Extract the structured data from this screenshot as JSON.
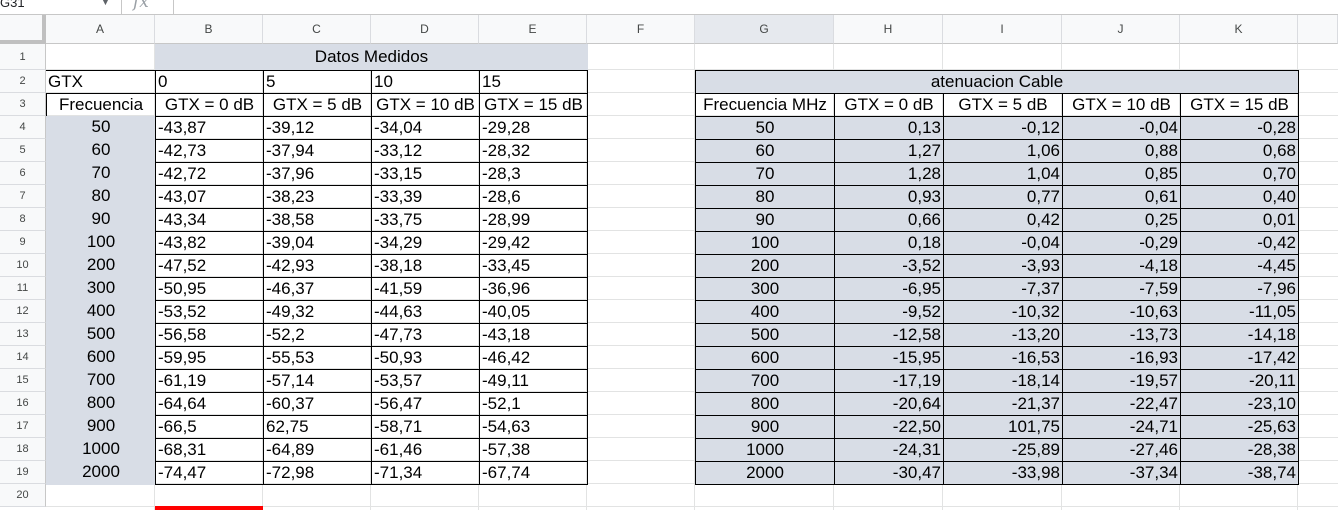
{
  "namebox": "G31",
  "fx_symbol": "fx",
  "columns": [
    "A",
    "B",
    "C",
    "D",
    "E",
    "F",
    "G",
    "H",
    "I",
    "J",
    "K"
  ],
  "rows": [
    "1",
    "2",
    "3",
    "4",
    "5",
    "6",
    "7",
    "8",
    "9",
    "10",
    "11",
    "12",
    "13",
    "14",
    "15",
    "16",
    "17",
    "18",
    "19",
    "20"
  ],
  "left_table": {
    "title": "Datos Medidos",
    "gtx_label": "GTX",
    "gtx_values": [
      "0",
      "5",
      "10",
      "15"
    ],
    "freq_header": "Frecuencia",
    "headers": [
      "GTX = 0 dB",
      "GTX = 5 dB",
      "GTX = 10 dB",
      "GTX = 15 dB"
    ],
    "rows": [
      [
        "50",
        "-43,87",
        "-39,12",
        "-34,04",
        "-29,28"
      ],
      [
        "60",
        "-42,73",
        "-37,94",
        "-33,12",
        "-28,32"
      ],
      [
        "70",
        "-42,72",
        "-37,96",
        "-33,15",
        "-28,3"
      ],
      [
        "80",
        "-43,07",
        "-38,23",
        "-33,39",
        "-28,6"
      ],
      [
        "90",
        "-43,34",
        "-38,58",
        "-33,75",
        "-28,99"
      ],
      [
        "100",
        "-43,82",
        "-39,04",
        "-34,29",
        "-29,42"
      ],
      [
        "200",
        "-47,52",
        "-42,93",
        "-38,18",
        "-33,45"
      ],
      [
        "300",
        "-50,95",
        "-46,37",
        "-41,59",
        "-36,96"
      ],
      [
        "400",
        "-53,52",
        "-49,32",
        "-44,63",
        "-40,05"
      ],
      [
        "500",
        "-56,58",
        "-52,2",
        "-47,73",
        "-43,18"
      ],
      [
        "600",
        "-59,95",
        "-55,53",
        "-50,93",
        "-46,42"
      ],
      [
        "700",
        "-61,19",
        "-57,14",
        "-53,57",
        "-49,11"
      ],
      [
        "800",
        "-64,64",
        "-60,37",
        "-56,47",
        "-52,1"
      ],
      [
        "900",
        "-66,5",
        "62,75",
        "-58,71",
        "-54,63"
      ],
      [
        "1000",
        "-68,31",
        "-64,89",
        "-61,46",
        "-57,38"
      ],
      [
        "2000",
        "-74,47",
        "-72,98",
        "-71,34",
        "-67,74"
      ]
    ]
  },
  "right_table": {
    "title": "atenuacion Cable",
    "freq_header": "Frecuencia MHz",
    "headers": [
      "GTX = 0 dB",
      "GTX = 5 dB",
      "GTX = 10 dB",
      "GTX = 15 dB"
    ],
    "rows": [
      [
        "50",
        "0,13",
        "-0,12",
        "-0,04",
        "-0,28"
      ],
      [
        "60",
        "1,27",
        "1,06",
        "0,88",
        "0,68"
      ],
      [
        "70",
        "1,28",
        "1,04",
        "0,85",
        "0,70"
      ],
      [
        "80",
        "0,93",
        "0,77",
        "0,61",
        "0,40"
      ],
      [
        "90",
        "0,66",
        "0,42",
        "0,25",
        "0,01"
      ],
      [
        "100",
        "0,18",
        "-0,04",
        "-0,29",
        "-0,42"
      ],
      [
        "200",
        "-3,52",
        "-3,93",
        "-4,18",
        "-4,45"
      ],
      [
        "300",
        "-6,95",
        "-7,37",
        "-7,59",
        "-7,96"
      ],
      [
        "400",
        "-9,52",
        "-10,32",
        "-10,63",
        "-11,05"
      ],
      [
        "500",
        "-12,58",
        "-13,20",
        "-13,73",
        "-14,18"
      ],
      [
        "600",
        "-15,95",
        "-16,53",
        "-16,93",
        "-17,42"
      ],
      [
        "700",
        "-17,19",
        "-18,14",
        "-19,57",
        "-20,11"
      ],
      [
        "800",
        "-20,64",
        "-21,37",
        "-22,47",
        "-23,10"
      ],
      [
        "900",
        "-22,50",
        "101,75",
        "-24,71",
        "-25,63"
      ],
      [
        "1000",
        "-24,31",
        "-25,89",
        "-27,46",
        "-28,38"
      ],
      [
        "2000",
        "-30,47",
        "-33,98",
        "-37,34",
        "-38,74"
      ]
    ]
  }
}
